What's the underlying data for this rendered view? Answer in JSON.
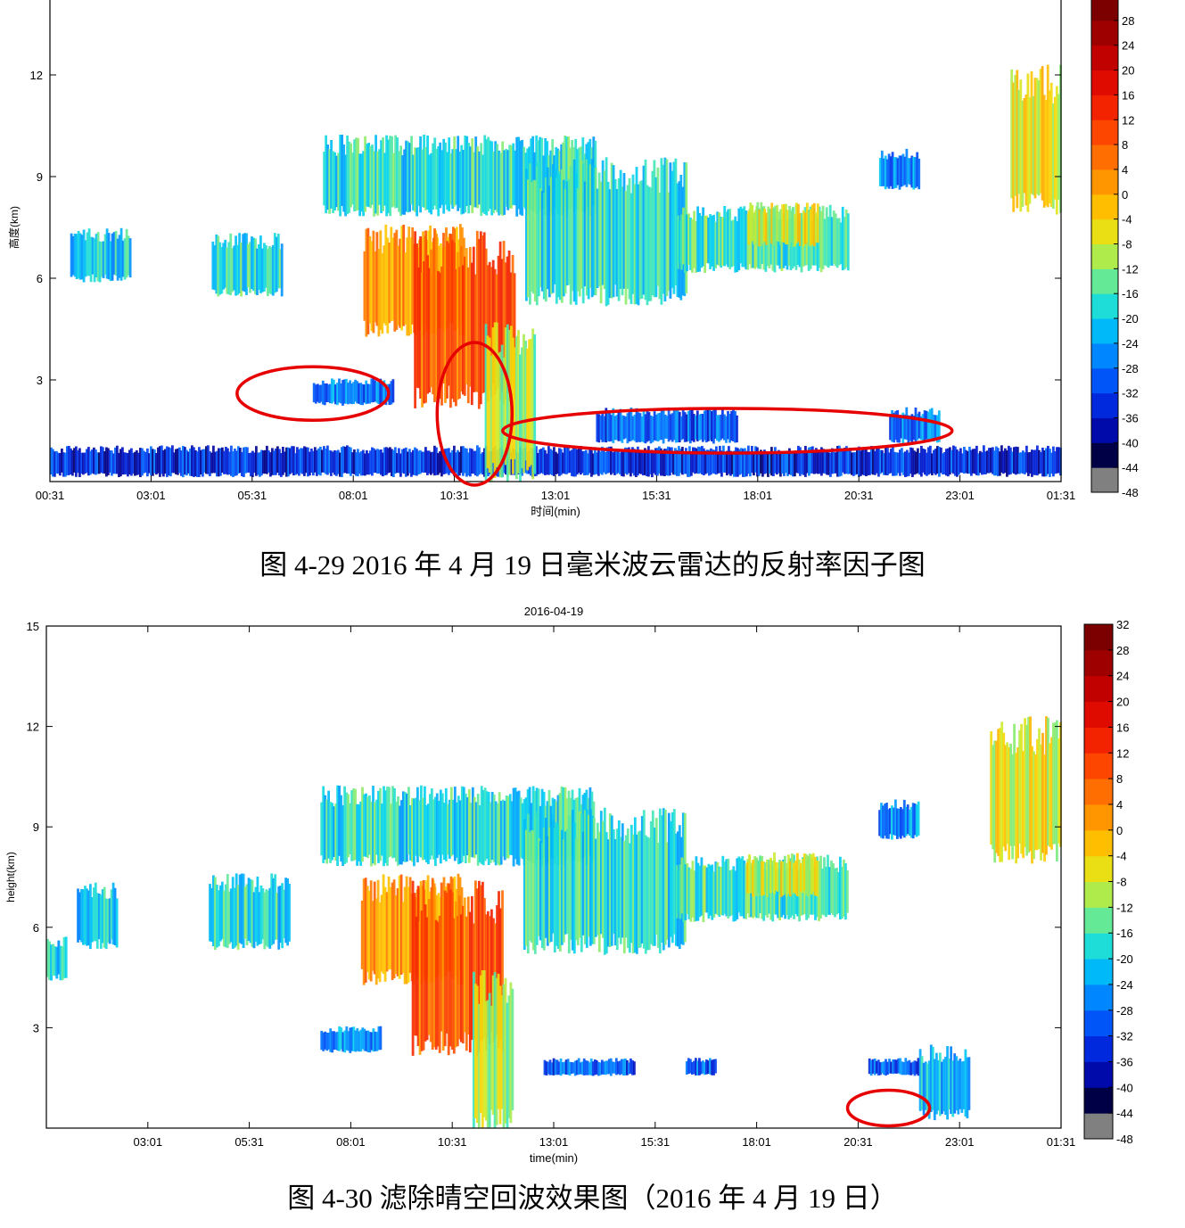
{
  "figures": [
    {
      "caption": "图 4-29 2016 年 4 月 19 日毫米波云雷达的反射率因子图",
      "date_label": "",
      "chart_data": {
        "type": "heatmap",
        "title": "",
        "xlabel": "时间(min)",
        "ylabel": "高度(km)",
        "x_ticks": [
          "00:31",
          "03:01",
          "05:31",
          "08:01",
          "10:31",
          "13:01",
          "15:31",
          "18:01",
          "20:31",
          "23:01",
          "01:31"
        ],
        "y_ticks": [
          "3",
          "6",
          "9",
          "12"
        ],
        "ylim": [
          0,
          15
        ],
        "colorbar_ticks": [
          "28",
          "24",
          "20",
          "16",
          "12",
          "8",
          "4",
          "0",
          "-4",
          "-8",
          "-12",
          "-16",
          "-20",
          "-24",
          "-28",
          "-32",
          "-36",
          "-40",
          "-44",
          "-48"
        ],
        "colorbar_range": [
          -48,
          32
        ],
        "annotations": [
          "red ellipse around low echo near 07:00-08:30, ~2.5 km",
          "red ellipse around precipitation column near 10:31, 0-4 km",
          "red ellipse around low clear-air echo band 12:00-23:00, ~1.5 km"
        ],
        "echo_regions": [
          {
            "t0": 0.0,
            "t1": 1.0,
            "h0": 0.2,
            "h1": 0.9,
            "dbz": -34
          },
          {
            "t0": 0.02,
            "t1": 0.08,
            "h0": 6.0,
            "h1": 7.2,
            "dbz": -20
          },
          {
            "t0": 0.16,
            "t1": 0.23,
            "h0": 5.6,
            "h1": 7.0,
            "dbz": -18
          },
          {
            "t0": 0.26,
            "t1": 0.34,
            "h0": 2.3,
            "h1": 2.9,
            "dbz": -28
          },
          {
            "t0": 0.27,
            "t1": 0.54,
            "h0": 8.0,
            "h1": 9.8,
            "dbz": -18
          },
          {
            "t0": 0.31,
            "t1": 0.41,
            "h0": 4.5,
            "h1": 7.0,
            "dbz": 2
          },
          {
            "t0": 0.36,
            "t1": 0.46,
            "h0": 2.5,
            "h1": 6.5,
            "dbz": 8
          },
          {
            "t0": 0.43,
            "t1": 0.48,
            "h0": 0.3,
            "h1": 4.0,
            "dbz": -10
          },
          {
            "t0": 0.47,
            "t1": 0.63,
            "h0": 5.5,
            "h1": 8.8,
            "dbz": -18
          },
          {
            "t0": 0.54,
            "t1": 0.68,
            "h0": 1.2,
            "h1": 2.0,
            "dbz": -30
          },
          {
            "t0": 0.62,
            "t1": 0.79,
            "h0": 6.3,
            "h1": 7.8,
            "dbz": -16
          },
          {
            "t0": 0.69,
            "t1": 0.76,
            "h0": 7.0,
            "h1": 8.0,
            "dbz": -8
          },
          {
            "t0": 0.82,
            "t1": 0.86,
            "h0": 8.7,
            "h1": 9.6,
            "dbz": -26
          },
          {
            "t0": 0.83,
            "t1": 0.88,
            "h0": 1.2,
            "h1": 2.0,
            "dbz": -28
          },
          {
            "t0": 0.95,
            "t1": 1.0,
            "h0": 8.2,
            "h1": 11.5,
            "dbz": -6
          }
        ]
      }
    },
    {
      "caption": "图 4-30 滤除晴空回波效果图（2016 年 4 月 19 日）",
      "date_label": "2016-04-19",
      "chart_data": {
        "type": "heatmap",
        "title": "2016-04-19",
        "xlabel": "time(min)",
        "ylabel": "height(km)",
        "x_ticks": [
          "03:01",
          "05:31",
          "08:01",
          "10:31",
          "13:01",
          "15:31",
          "18:01",
          "20:31",
          "23:01",
          "01:31"
        ],
        "y_ticks": [
          "15",
          "12",
          "9",
          "6",
          "3"
        ],
        "ylim": [
          0,
          15
        ],
        "colorbar_ticks": [
          "32",
          "28",
          "24",
          "20",
          "16",
          "12",
          "8",
          "4",
          "0",
          "-4",
          "-8",
          "-12",
          "-16",
          "-20",
          "-24",
          "-28",
          "-32",
          "-36",
          "-40",
          "-44",
          "-48"
        ],
        "colorbar_range": [
          -48,
          32
        ],
        "annotations": [
          "red ellipse around residual low echo near 21:00, ~0.5-1.5 km"
        ],
        "echo_regions": [
          {
            "t0": 0.0,
            "t1": 0.02,
            "h0": 4.5,
            "h1": 5.5,
            "dbz": -20
          },
          {
            "t0": 0.03,
            "t1": 0.07,
            "h0": 5.5,
            "h1": 7.0,
            "dbz": -20
          },
          {
            "t0": 0.16,
            "t1": 0.24,
            "h0": 5.5,
            "h1": 7.2,
            "dbz": -18
          },
          {
            "t0": 0.27,
            "t1": 0.33,
            "h0": 2.3,
            "h1": 2.9,
            "dbz": -26
          },
          {
            "t0": 0.27,
            "t1": 0.54,
            "h0": 8.0,
            "h1": 9.8,
            "dbz": -18
          },
          {
            "t0": 0.31,
            "t1": 0.41,
            "h0": 4.5,
            "h1": 7.0,
            "dbz": 2
          },
          {
            "t0": 0.36,
            "t1": 0.45,
            "h0": 2.5,
            "h1": 6.5,
            "dbz": 8
          },
          {
            "t0": 0.42,
            "t1": 0.46,
            "h0": 0.2,
            "h1": 4.0,
            "dbz": -10
          },
          {
            "t0": 0.47,
            "t1": 0.63,
            "h0": 5.5,
            "h1": 8.8,
            "dbz": -18
          },
          {
            "t0": 0.49,
            "t1": 0.58,
            "h0": 1.6,
            "h1": 2.0,
            "dbz": -30
          },
          {
            "t0": 0.62,
            "t1": 0.79,
            "h0": 6.3,
            "h1": 7.8,
            "dbz": -16
          },
          {
            "t0": 0.63,
            "t1": 0.66,
            "h0": 1.6,
            "h1": 2.0,
            "dbz": -30
          },
          {
            "t0": 0.69,
            "t1": 0.76,
            "h0": 7.0,
            "h1": 8.0,
            "dbz": -8
          },
          {
            "t0": 0.82,
            "t1": 0.86,
            "h0": 8.7,
            "h1": 9.6,
            "dbz": -26
          },
          {
            "t0": 0.81,
            "t1": 0.86,
            "h0": 1.6,
            "h1": 2.0,
            "dbz": -30
          },
          {
            "t0": 0.86,
            "t1": 0.91,
            "h0": 0.4,
            "h1": 2.1,
            "dbz": -22
          },
          {
            "t0": 0.93,
            "t1": 1.0,
            "h0": 8.2,
            "h1": 11.5,
            "dbz": -6
          }
        ]
      }
    }
  ]
}
